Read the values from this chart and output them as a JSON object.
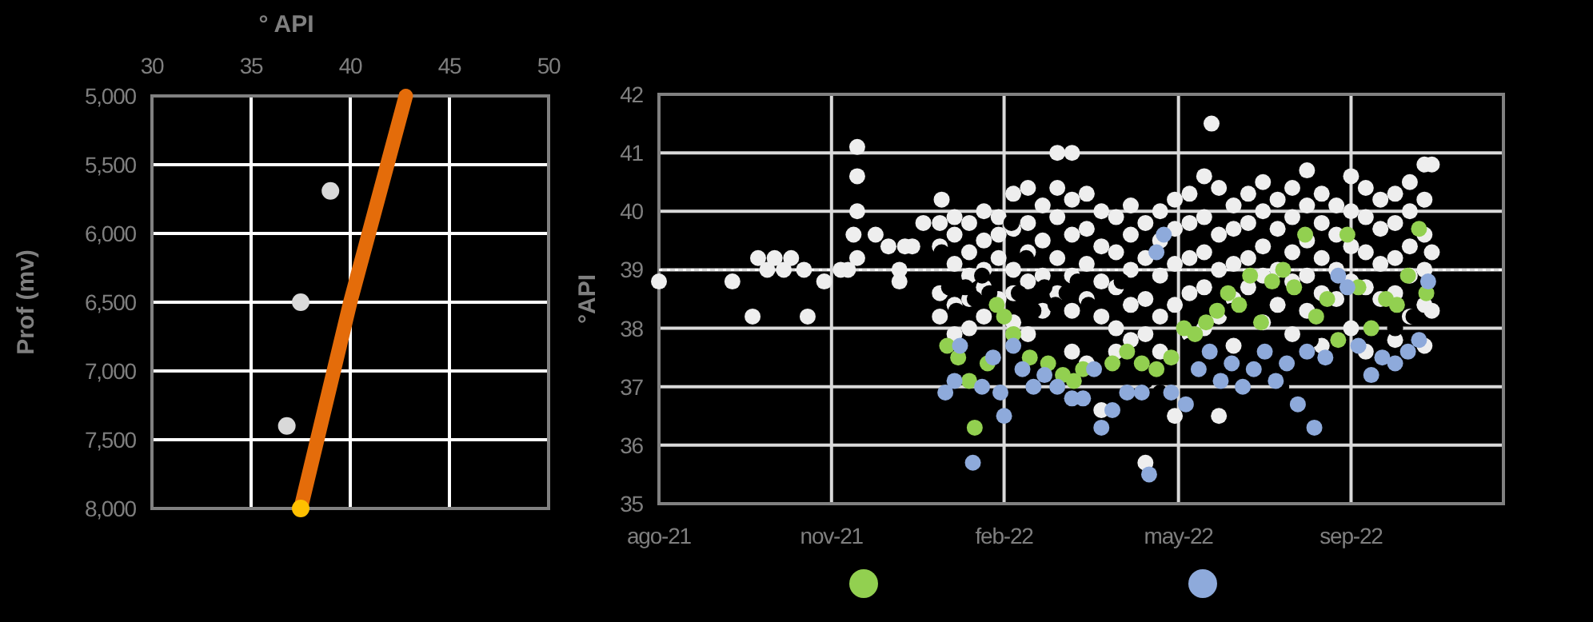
{
  "chart_data": [
    {
      "type": "scatter",
      "xlabel": "° API",
      "ylabel": "Prof (mv)",
      "xlim": [
        30,
        50
      ],
      "xticks": [
        30,
        35,
        40,
        45,
        50
      ],
      "ylim": [
        8000,
        5000
      ],
      "yticks": [
        {
          "value": 5000,
          "label": "5,000"
        },
        {
          "value": 5500,
          "label": "5,500"
        },
        {
          "value": 6000,
          "label": "6,000"
        },
        {
          "value": 6500,
          "label": "6,500"
        },
        {
          "value": 7000,
          "label": "7,000"
        },
        {
          "value": 7500,
          "label": "7,500"
        },
        {
          "value": 8000,
          "label": "8,000"
        }
      ],
      "grid": true,
      "series": [
        {
          "color": "#d9d9d9",
          "x": [
            39.0,
            37.5,
            36.8
          ],
          "values": [
            5690,
            6500,
            7400
          ]
        },
        {
          "type": "line",
          "color": "#e46c0a",
          "x": [
            37.5,
            40.0,
            42.8
          ],
          "values": [
            8000,
            6500,
            5000
          ]
        },
        {
          "color": "#ffc000",
          "x": [
            37.5
          ],
          "values": [
            8000
          ]
        }
      ]
    },
    {
      "type": "scatter",
      "ylabel": "°API",
      "xlim": [
        "2021-08-20",
        "2022-11-23"
      ],
      "xticks": [
        {
          "value": "2021-08-20",
          "label": "ago-21"
        },
        {
          "value": "2021-11-22",
          "label": "nov-21"
        },
        {
          "value": "2022-02-24",
          "label": "feb-22"
        },
        {
          "value": "2022-05-30",
          "label": "may-22"
        },
        {
          "value": "2022-09-01",
          "label": "sep-22"
        }
      ],
      "ylim": [
        35,
        42
      ],
      "yticks": [
        35,
        36,
        37,
        38,
        39,
        40,
        41,
        42
      ],
      "grid": true,
      "ref_lines": [
        {
          "axis": "y",
          "value": 39,
          "color": "#ffffff",
          "line_style": "dotted"
        }
      ],
      "series": [
        {
          "color": "#eeeeee",
          "x": [
            "2021-08-20",
            "2021-09-29",
            "2021-10-10",
            "2021-10-13",
            "2021-10-18",
            "2021-10-22",
            "2021-10-27",
            "2021-10-31",
            "2021-11-07",
            "2021-11-09",
            "2021-11-18",
            "2021-11-27",
            "2021-12-01",
            "2021-12-06",
            "2021-12-06",
            "2021-12-06",
            "2021-12-04",
            "2021-12-06",
            "2021-12-16",
            "2021-12-23",
            "2021-12-29",
            "2021-12-29",
            "2022-01-01",
            "2022-01-05",
            "2022-01-11",
            "2022-01-21",
            "2022-01-20",
            "2022-01-20",
            "2022-01-20",
            "2022-01-20",
            "2022-01-28",
            "2022-01-28",
            "2022-01-28",
            "2022-01-28",
            "2022-01-28",
            "2022-02-05",
            "2022-02-05",
            "2022-02-05",
            "2022-02-05",
            "2022-02-05",
            "2022-02-13",
            "2022-02-13",
            "2022-02-13",
            "2022-02-13",
            "2022-02-13",
            "2022-02-21",
            "2022-02-21",
            "2022-02-21",
            "2022-02-21",
            "2022-03-01",
            "2022-03-01",
            "2022-03-01",
            "2022-03-01",
            "2022-03-01",
            "2022-03-09",
            "2022-03-09",
            "2022-03-09",
            "2022-03-09",
            "2022-03-09",
            "2022-03-17",
            "2022-03-17",
            "2022-03-17",
            "2022-03-17",
            "2022-03-25",
            "2022-03-25",
            "2022-03-25",
            "2022-03-25",
            "2022-03-25",
            "2022-04-02",
            "2022-04-02",
            "2022-04-02",
            "2022-04-02",
            "2022-04-02",
            "2022-04-02",
            "2022-04-10",
            "2022-04-10",
            "2022-04-10",
            "2022-04-10",
            "2022-04-10",
            "2022-04-18",
            "2022-04-18",
            "2022-04-18",
            "2022-04-18",
            "2022-04-18",
            "2022-04-26",
            "2022-04-26",
            "2022-04-26",
            "2022-04-26",
            "2022-04-26",
            "2022-05-04",
            "2022-05-04",
            "2022-05-04",
            "2022-05-04",
            "2022-05-04",
            "2022-05-12",
            "2022-05-12",
            "2022-05-12",
            "2022-05-12",
            "2022-05-12",
            "2022-05-20",
            "2022-05-20",
            "2022-05-20",
            "2022-05-20",
            "2022-05-20",
            "2022-05-28",
            "2022-05-28",
            "2022-05-28",
            "2022-05-28",
            "2022-05-28",
            "2022-06-05",
            "2022-06-05",
            "2022-06-05",
            "2022-06-05",
            "2022-06-05",
            "2022-06-13",
            "2022-06-13",
            "2022-06-13",
            "2022-06-13",
            "2022-06-13",
            "2022-06-17",
            "2022-06-21",
            "2022-06-21",
            "2022-06-21",
            "2022-06-21",
            "2022-06-21",
            "2022-06-29",
            "2022-06-29",
            "2022-06-29",
            "2022-06-29",
            "2022-06-29",
            "2022-07-07",
            "2022-07-07",
            "2022-07-07",
            "2022-07-07",
            "2022-07-15",
            "2022-07-15",
            "2022-07-15",
            "2022-07-15",
            "2022-07-15",
            "2022-07-23",
            "2022-07-23",
            "2022-07-23",
            "2022-07-23",
            "2022-07-31",
            "2022-07-31",
            "2022-07-31",
            "2022-07-31",
            "2022-07-31",
            "2022-08-08",
            "2022-08-08",
            "2022-08-08",
            "2022-08-08",
            "2022-08-08",
            "2022-08-16",
            "2022-08-16",
            "2022-08-16",
            "2022-08-16",
            "2022-08-16",
            "2022-08-24",
            "2022-08-24",
            "2022-08-24",
            "2022-08-24",
            "2022-09-01",
            "2022-09-01",
            "2022-09-01",
            "2022-09-01",
            "2022-09-01",
            "2022-09-09",
            "2022-09-09",
            "2022-09-09",
            "2022-09-09",
            "2022-09-09",
            "2022-09-17",
            "2022-09-17",
            "2022-09-17",
            "2022-09-17",
            "2022-09-25",
            "2022-09-25",
            "2022-09-25",
            "2022-09-25",
            "2022-09-25",
            "2022-10-03",
            "2022-10-03",
            "2022-10-03",
            "2022-10-03",
            "2022-10-03",
            "2022-10-11",
            "2022-10-11",
            "2022-10-11",
            "2022-10-11",
            "2022-10-11",
            "2022-10-11",
            "2022-10-15",
            "2022-10-15",
            "2022-10-15"
          ],
          "values": [
            38.8,
            38.8,
            38.2,
            39.2,
            39.0,
            39.2,
            39.0,
            39.2,
            39.0,
            38.2,
            38.8,
            39.0,
            39.0,
            41.1,
            40.6,
            40.0,
            39.6,
            39.2,
            39.6,
            39.4,
            39.0,
            38.8,
            39.4,
            39.4,
            39.8,
            40.2,
            39.8,
            39.4,
            38.6,
            38.2,
            39.9,
            39.6,
            39.1,
            38.4,
            37.9,
            39.8,
            39.3,
            38.9,
            38.5,
            38.0,
            40.0,
            39.5,
            39.0,
            38.7,
            38.2,
            39.9,
            39.6,
            39.2,
            38.5,
            40.3,
            39.7,
            39.0,
            38.6,
            38.1,
            40.4,
            39.8,
            39.3,
            38.8,
            37.9,
            40.1,
            39.5,
            38.9,
            38.3,
            41.0,
            40.4,
            39.9,
            39.2,
            38.6,
            41.0,
            40.2,
            39.6,
            38.9,
            38.3,
            37.6,
            40.3,
            39.7,
            39.1,
            38.5,
            37.4,
            40.0,
            39.4,
            38.8,
            38.2,
            36.6,
            39.9,
            39.3,
            38.7,
            38.0,
            37.6,
            40.1,
            39.6,
            39.0,
            38.4,
            37.8,
            39.8,
            39.2,
            38.5,
            37.9,
            35.7,
            40.0,
            39.5,
            38.9,
            38.2,
            37.6,
            40.2,
            39.7,
            39.1,
            38.4,
            36.5,
            40.3,
            39.8,
            39.2,
            38.6,
            37.9,
            40.6,
            39.9,
            39.3,
            38.7,
            38.0,
            41.5,
            40.4,
            39.6,
            39.0,
            38.2,
            36.5,
            40.1,
            39.7,
            39.1,
            38.5,
            37.7,
            40.3,
            39.8,
            39.2,
            38.7,
            40.5,
            40.0,
            39.4,
            38.9,
            38.1,
            40.2,
            39.7,
            39.0,
            38.4,
            40.4,
            39.9,
            39.3,
            38.8,
            37.9,
            40.7,
            40.1,
            39.5,
            38.9,
            38.3,
            40.3,
            39.8,
            39.2,
            38.6,
            37.7,
            40.1,
            39.6,
            39.0,
            38.5,
            40.6,
            40.0,
            39.4,
            38.8,
            38.0,
            40.4,
            39.9,
            39.3,
            38.7,
            37.6,
            40.2,
            39.7,
            39.1,
            38.5,
            40.3,
            39.8,
            39.2,
            38.6,
            37.8,
            40.5,
            40.0,
            39.4,
            38.9,
            38.2,
            40.8,
            40.2,
            39.6,
            39.0,
            38.4,
            37.7,
            40.8,
            39.3,
            38.3
          ]
        },
        {
          "color": "#000000",
          "x": [
            "2022-01-21",
            "2022-01-25",
            "2022-01-29",
            "2022-02-03",
            "2022-02-08",
            "2022-02-12",
            "2022-02-16",
            "2022-02-28",
            "2022-03-04",
            "2022-03-08",
            "2022-03-12",
            "2022-03-18",
            "2022-03-24",
            "2022-03-30",
            "2022-04-05",
            "2022-04-11",
            "2022-04-29",
            "2022-05-12",
            "2022-05-20",
            "2022-06-05",
            "2022-06-28",
            "2022-07-25",
            "2022-08-10",
            "2022-09-25",
            "2022-10-05"
          ],
          "values": [
            39.3,
            38.7,
            38.3,
            38.7,
            38.5,
            38.9,
            38.6,
            39.8,
            38.6,
            39.2,
            38.3,
            38.7,
            38.4,
            38.6,
            38.8,
            38.4,
            38.8,
            37.1,
            36.9,
            37.7,
            38.3,
            37.0,
            37.8,
            38.0,
            38.2
          ]
        },
        {
          "name": null,
          "color": "#92d050",
          "x": [
            "2022-01-24",
            "2022-01-30",
            "2022-02-05",
            "2022-02-08",
            "2022-02-15",
            "2022-02-20",
            "2022-02-24",
            "2022-03-01",
            "2022-03-10",
            "2022-03-20",
            "2022-03-28",
            "2022-04-03",
            "2022-04-08",
            "2022-04-24",
            "2022-05-02",
            "2022-05-10",
            "2022-05-18",
            "2022-05-26",
            "2022-06-02",
            "2022-06-08",
            "2022-06-14",
            "2022-06-20",
            "2022-06-26",
            "2022-07-02",
            "2022-07-08",
            "2022-07-14",
            "2022-07-20",
            "2022-07-26",
            "2022-08-01",
            "2022-08-07",
            "2022-08-13",
            "2022-08-19",
            "2022-08-25",
            "2022-08-30",
            "2022-09-05",
            "2022-09-12",
            "2022-09-20",
            "2022-09-26",
            "2022-10-02",
            "2022-10-08",
            "2022-10-12"
          ],
          "values": [
            37.7,
            37.5,
            37.1,
            36.3,
            37.4,
            38.4,
            38.2,
            37.9,
            37.5,
            37.4,
            37.2,
            37.1,
            37.3,
            37.4,
            37.6,
            37.4,
            37.3,
            37.5,
            38.0,
            37.9,
            38.1,
            38.3,
            38.6,
            38.4,
            38.9,
            38.1,
            38.8,
            39.0,
            38.7,
            39.6,
            38.2,
            38.5,
            37.8,
            39.6,
            38.7,
            38.0,
            38.5,
            38.4,
            38.9,
            39.7,
            38.6
          ]
        },
        {
          "name": null,
          "color": "#8eaadb",
          "x": [
            "2022-01-23",
            "2022-01-28",
            "2022-01-31",
            "2022-02-07",
            "2022-02-12",
            "2022-02-18",
            "2022-02-22",
            "2022-02-24",
            "2022-03-01",
            "2022-03-06",
            "2022-03-12",
            "2022-03-18",
            "2022-03-25",
            "2022-04-02",
            "2022-04-08",
            "2022-04-14",
            "2022-04-18",
            "2022-04-24",
            "2022-05-02",
            "2022-05-10",
            "2022-05-14",
            "2022-05-18",
            "2022-05-22",
            "2022-05-26",
            "2022-06-03",
            "2022-06-10",
            "2022-06-16",
            "2022-06-22",
            "2022-06-28",
            "2022-07-04",
            "2022-07-10",
            "2022-07-16",
            "2022-07-22",
            "2022-07-28",
            "2022-08-03",
            "2022-08-08",
            "2022-08-12",
            "2022-08-18",
            "2022-08-25",
            "2022-08-30",
            "2022-09-05",
            "2022-09-12",
            "2022-09-18",
            "2022-09-25",
            "2022-10-02",
            "2022-10-08",
            "2022-10-13"
          ],
          "values": [
            36.9,
            37.1,
            37.7,
            35.7,
            37.0,
            37.5,
            36.9,
            36.5,
            37.7,
            37.3,
            37.0,
            37.2,
            37.0,
            36.8,
            36.8,
            37.3,
            36.3,
            36.6,
            36.9,
            36.9,
            35.5,
            39.3,
            39.6,
            36.9,
            36.7,
            37.3,
            37.6,
            37.1,
            37.4,
            37.0,
            37.3,
            37.6,
            37.1,
            37.4,
            36.7,
            37.6,
            36.3,
            37.5,
            38.9,
            38.7,
            37.7,
            37.2,
            37.5,
            37.4,
            37.6,
            37.8,
            38.8
          ]
        }
      ]
    }
  ]
}
